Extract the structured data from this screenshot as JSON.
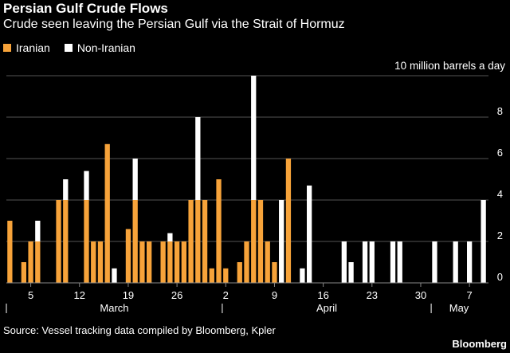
{
  "title": "Persian Gulf Crude Flows",
  "subtitle": "Crude seen leaving the Persian Gulf via the Strait of Hormuz",
  "units_label": "10 million barrels a day",
  "source": "Source: Vessel tracking data compiled by Bloomberg, Kpler",
  "brand": "Bloomberg",
  "colors": {
    "iranian": "#f7a33a",
    "non_iranian": "#ffffff",
    "grid": "#555555",
    "background": "#000000"
  },
  "chart_data": {
    "type": "bar",
    "stacked": true,
    "x": [
      1,
      2,
      3,
      4,
      5,
      6,
      7,
      8,
      9,
      10,
      11,
      12,
      13,
      14,
      15,
      16,
      17,
      18,
      19,
      20,
      21,
      22,
      23,
      24,
      25,
      26,
      27,
      28,
      29,
      30,
      31,
      32,
      33,
      34,
      35,
      36,
      37,
      38,
      39,
      40,
      41,
      42,
      43,
      44,
      45,
      46,
      47,
      48,
      49,
      50,
      51,
      52,
      53,
      54,
      55,
      56,
      57,
      58,
      59,
      60,
      61,
      62,
      63,
      64,
      65,
      66,
      67,
      68,
      69
    ],
    "series": [
      {
        "name": "Iranian",
        "values": [
          3.0,
          0,
          1.0,
          2.0,
          2.0,
          0,
          0,
          4.0,
          4.0,
          0,
          0,
          4.0,
          2.0,
          2.0,
          6.7,
          0,
          0,
          2.6,
          4.0,
          2.0,
          2.0,
          0,
          2.0,
          2.0,
          2.0,
          2.0,
          4.0,
          4.0,
          4.0,
          0.7,
          5.0,
          0.7,
          0,
          1.0,
          2.0,
          4.0,
          4.0,
          2.0,
          1.0,
          0,
          6.0,
          0,
          0,
          0,
          0,
          0,
          0,
          0,
          0,
          0,
          0,
          0,
          0,
          0,
          0,
          0,
          0,
          0,
          0,
          0,
          0,
          0,
          0,
          0,
          0,
          0,
          0,
          0,
          0
        ]
      },
      {
        "name": "Non-Iranian",
        "values": [
          0,
          0,
          0,
          0,
          1.0,
          0,
          0,
          0,
          1.0,
          0,
          0,
          1.4,
          0,
          0,
          0,
          0.7,
          0,
          0,
          2.0,
          0,
          0,
          0,
          0,
          0.4,
          0,
          0,
          0,
          4.0,
          0,
          0,
          0,
          0,
          0,
          0,
          0,
          6.0,
          0,
          0,
          0,
          4.0,
          0,
          0,
          0.7,
          4.7,
          0,
          0,
          0,
          0,
          2.0,
          1.0,
          0,
          2.0,
          2.0,
          0,
          0,
          2.0,
          2.0,
          0,
          0,
          0,
          0,
          2.0,
          0,
          0,
          2.0,
          0,
          2.0,
          0,
          4.0
        ]
      }
    ],
    "ylim": [
      0,
      10
    ],
    "yticks": [
      0,
      2,
      4,
      6,
      8,
      10
    ],
    "ytick_labels": [
      "0",
      "2",
      "4",
      "6",
      "8",
      ""
    ],
    "xticks": [
      {
        "x": 4,
        "label": "5"
      },
      {
        "x": 11,
        "label": "12"
      },
      {
        "x": 18,
        "label": "19"
      },
      {
        "x": 25,
        "label": "26"
      },
      {
        "x": 32,
        "label": "2"
      },
      {
        "x": 39,
        "label": "9"
      },
      {
        "x": 46,
        "label": "16"
      },
      {
        "x": 53,
        "label": "23"
      },
      {
        "x": 60,
        "label": "30"
      },
      {
        "x": 67,
        "label": "7"
      }
    ],
    "months": [
      {
        "label": "March",
        "start": 0.5
      },
      {
        "label": "April",
        "start": 31.5
      },
      {
        "label": "May",
        "start": 61.5
      }
    ],
    "grid": true,
    "legend_placement": "top-left"
  }
}
